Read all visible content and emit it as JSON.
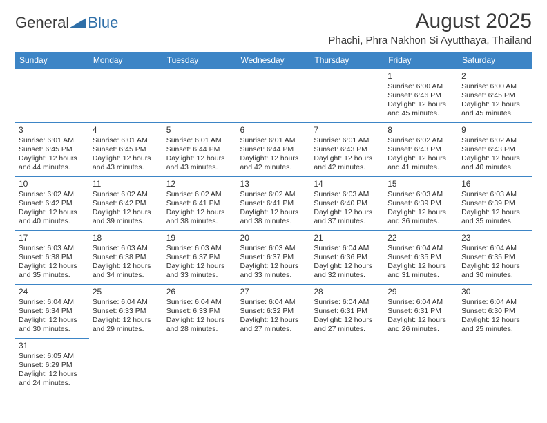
{
  "logo": {
    "text1": "General",
    "text2": "Blue",
    "triangle_color": "#2f6fa8"
  },
  "header": {
    "month_title": "August 2025",
    "location": "Phachi, Phra Nakhon Si Ayutthaya, Thailand"
  },
  "colors": {
    "header_bg": "#3d85c6",
    "header_text": "#ffffff",
    "cell_border": "#3d85c6",
    "body_text": "#333333",
    "background": "#ffffff"
  },
  "weekdays": [
    "Sunday",
    "Monday",
    "Tuesday",
    "Wednesday",
    "Thursday",
    "Friday",
    "Saturday"
  ],
  "weeks": [
    [
      null,
      null,
      null,
      null,
      null,
      {
        "day": "1",
        "sunrise": "Sunrise: 6:00 AM",
        "sunset": "Sunset: 6:46 PM",
        "daylight1": "Daylight: 12 hours",
        "daylight2": "and 45 minutes."
      },
      {
        "day": "2",
        "sunrise": "Sunrise: 6:00 AM",
        "sunset": "Sunset: 6:45 PM",
        "daylight1": "Daylight: 12 hours",
        "daylight2": "and 45 minutes."
      }
    ],
    [
      {
        "day": "3",
        "sunrise": "Sunrise: 6:01 AM",
        "sunset": "Sunset: 6:45 PM",
        "daylight1": "Daylight: 12 hours",
        "daylight2": "and 44 minutes."
      },
      {
        "day": "4",
        "sunrise": "Sunrise: 6:01 AM",
        "sunset": "Sunset: 6:45 PM",
        "daylight1": "Daylight: 12 hours",
        "daylight2": "and 43 minutes."
      },
      {
        "day": "5",
        "sunrise": "Sunrise: 6:01 AM",
        "sunset": "Sunset: 6:44 PM",
        "daylight1": "Daylight: 12 hours",
        "daylight2": "and 43 minutes."
      },
      {
        "day": "6",
        "sunrise": "Sunrise: 6:01 AM",
        "sunset": "Sunset: 6:44 PM",
        "daylight1": "Daylight: 12 hours",
        "daylight2": "and 42 minutes."
      },
      {
        "day": "7",
        "sunrise": "Sunrise: 6:01 AM",
        "sunset": "Sunset: 6:43 PM",
        "daylight1": "Daylight: 12 hours",
        "daylight2": "and 42 minutes."
      },
      {
        "day": "8",
        "sunrise": "Sunrise: 6:02 AM",
        "sunset": "Sunset: 6:43 PM",
        "daylight1": "Daylight: 12 hours",
        "daylight2": "and 41 minutes."
      },
      {
        "day": "9",
        "sunrise": "Sunrise: 6:02 AM",
        "sunset": "Sunset: 6:43 PM",
        "daylight1": "Daylight: 12 hours",
        "daylight2": "and 40 minutes."
      }
    ],
    [
      {
        "day": "10",
        "sunrise": "Sunrise: 6:02 AM",
        "sunset": "Sunset: 6:42 PM",
        "daylight1": "Daylight: 12 hours",
        "daylight2": "and 40 minutes."
      },
      {
        "day": "11",
        "sunrise": "Sunrise: 6:02 AM",
        "sunset": "Sunset: 6:42 PM",
        "daylight1": "Daylight: 12 hours",
        "daylight2": "and 39 minutes."
      },
      {
        "day": "12",
        "sunrise": "Sunrise: 6:02 AM",
        "sunset": "Sunset: 6:41 PM",
        "daylight1": "Daylight: 12 hours",
        "daylight2": "and 38 minutes."
      },
      {
        "day": "13",
        "sunrise": "Sunrise: 6:02 AM",
        "sunset": "Sunset: 6:41 PM",
        "daylight1": "Daylight: 12 hours",
        "daylight2": "and 38 minutes."
      },
      {
        "day": "14",
        "sunrise": "Sunrise: 6:03 AM",
        "sunset": "Sunset: 6:40 PM",
        "daylight1": "Daylight: 12 hours",
        "daylight2": "and 37 minutes."
      },
      {
        "day": "15",
        "sunrise": "Sunrise: 6:03 AM",
        "sunset": "Sunset: 6:39 PM",
        "daylight1": "Daylight: 12 hours",
        "daylight2": "and 36 minutes."
      },
      {
        "day": "16",
        "sunrise": "Sunrise: 6:03 AM",
        "sunset": "Sunset: 6:39 PM",
        "daylight1": "Daylight: 12 hours",
        "daylight2": "and 35 minutes."
      }
    ],
    [
      {
        "day": "17",
        "sunrise": "Sunrise: 6:03 AM",
        "sunset": "Sunset: 6:38 PM",
        "daylight1": "Daylight: 12 hours",
        "daylight2": "and 35 minutes."
      },
      {
        "day": "18",
        "sunrise": "Sunrise: 6:03 AM",
        "sunset": "Sunset: 6:38 PM",
        "daylight1": "Daylight: 12 hours",
        "daylight2": "and 34 minutes."
      },
      {
        "day": "19",
        "sunrise": "Sunrise: 6:03 AM",
        "sunset": "Sunset: 6:37 PM",
        "daylight1": "Daylight: 12 hours",
        "daylight2": "and 33 minutes."
      },
      {
        "day": "20",
        "sunrise": "Sunrise: 6:03 AM",
        "sunset": "Sunset: 6:37 PM",
        "daylight1": "Daylight: 12 hours",
        "daylight2": "and 33 minutes."
      },
      {
        "day": "21",
        "sunrise": "Sunrise: 6:04 AM",
        "sunset": "Sunset: 6:36 PM",
        "daylight1": "Daylight: 12 hours",
        "daylight2": "and 32 minutes."
      },
      {
        "day": "22",
        "sunrise": "Sunrise: 6:04 AM",
        "sunset": "Sunset: 6:35 PM",
        "daylight1": "Daylight: 12 hours",
        "daylight2": "and 31 minutes."
      },
      {
        "day": "23",
        "sunrise": "Sunrise: 6:04 AM",
        "sunset": "Sunset: 6:35 PM",
        "daylight1": "Daylight: 12 hours",
        "daylight2": "and 30 minutes."
      }
    ],
    [
      {
        "day": "24",
        "sunrise": "Sunrise: 6:04 AM",
        "sunset": "Sunset: 6:34 PM",
        "daylight1": "Daylight: 12 hours",
        "daylight2": "and 30 minutes."
      },
      {
        "day": "25",
        "sunrise": "Sunrise: 6:04 AM",
        "sunset": "Sunset: 6:33 PM",
        "daylight1": "Daylight: 12 hours",
        "daylight2": "and 29 minutes."
      },
      {
        "day": "26",
        "sunrise": "Sunrise: 6:04 AM",
        "sunset": "Sunset: 6:33 PM",
        "daylight1": "Daylight: 12 hours",
        "daylight2": "and 28 minutes."
      },
      {
        "day": "27",
        "sunrise": "Sunrise: 6:04 AM",
        "sunset": "Sunset: 6:32 PM",
        "daylight1": "Daylight: 12 hours",
        "daylight2": "and 27 minutes."
      },
      {
        "day": "28",
        "sunrise": "Sunrise: 6:04 AM",
        "sunset": "Sunset: 6:31 PM",
        "daylight1": "Daylight: 12 hours",
        "daylight2": "and 27 minutes."
      },
      {
        "day": "29",
        "sunrise": "Sunrise: 6:04 AM",
        "sunset": "Sunset: 6:31 PM",
        "daylight1": "Daylight: 12 hours",
        "daylight2": "and 26 minutes."
      },
      {
        "day": "30",
        "sunrise": "Sunrise: 6:04 AM",
        "sunset": "Sunset: 6:30 PM",
        "daylight1": "Daylight: 12 hours",
        "daylight2": "and 25 minutes."
      }
    ],
    [
      {
        "day": "31",
        "sunrise": "Sunrise: 6:05 AM",
        "sunset": "Sunset: 6:29 PM",
        "daylight1": "Daylight: 12 hours",
        "daylight2": "and 24 minutes."
      },
      null,
      null,
      null,
      null,
      null,
      null
    ]
  ]
}
